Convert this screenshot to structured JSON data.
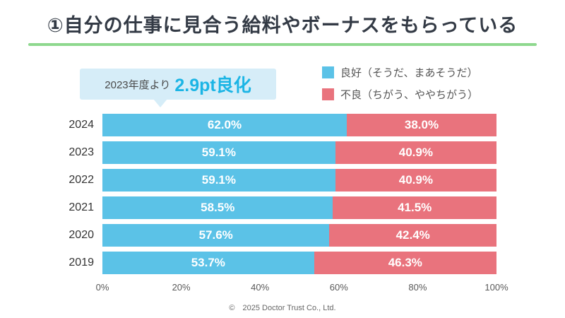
{
  "title": "①自分の仕事に見合う給料やボーナスをもらっている",
  "badge": {
    "prefix": "2023年度より",
    "highlight": "2.9pt良化"
  },
  "legend": [
    {
      "label": "良好（そうだ、まあそうだ）",
      "color": "#5bc2e7"
    },
    {
      "label": "不良（ちがう、ややちがう）",
      "color": "#e9737d"
    }
  ],
  "colors": {
    "good": "#5bc2e7",
    "bad": "#e9737d",
    "title_underline_green": "#8ed88e",
    "badge_background": "#d6edf8",
    "badge_highlight_text": "#1cb5e5"
  },
  "chart_data": {
    "type": "bar",
    "orientation": "horizontal-stacked",
    "categories": [
      "2024",
      "2023",
      "2022",
      "2021",
      "2020",
      "2019"
    ],
    "series": [
      {
        "name": "良好（そうだ、まあそうだ）",
        "color": "#5bc2e7",
        "values": [
          62.0,
          59.1,
          59.1,
          58.5,
          57.6,
          53.7
        ]
      },
      {
        "name": "不良（ちがう、ややちがう）",
        "color": "#e9737d",
        "values": [
          38.0,
          40.9,
          40.9,
          41.5,
          42.4,
          46.3
        ]
      }
    ],
    "x_ticks": [
      "0%",
      "20%",
      "40%",
      "60%",
      "80%",
      "100%"
    ],
    "xlim": [
      0,
      100
    ],
    "grid": false,
    "legend_position": "top-right",
    "value_label_format": "percent-one-decimal"
  },
  "footer": "©　2025 Doctor Trust Co., Ltd."
}
